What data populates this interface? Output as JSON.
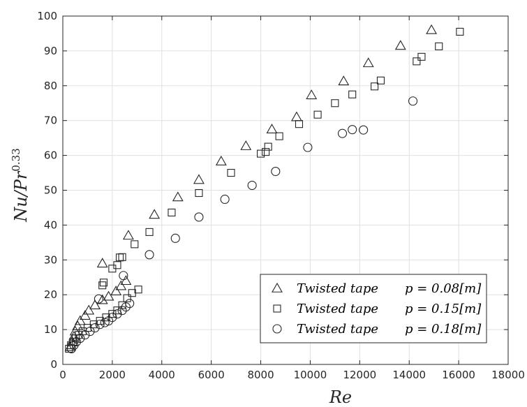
{
  "chart_data": {
    "type": "scatter",
    "xlabel": "Re",
    "ylabel_base": "Nu/Pr",
    "ylabel_exp": "0.33",
    "xlim": [
      0,
      18000
    ],
    "ylim": [
      0,
      100
    ],
    "xticks": [
      0,
      2000,
      4000,
      6000,
      8000,
      10000,
      12000,
      14000,
      16000,
      18000
    ],
    "yticks": [
      0,
      10,
      20,
      30,
      40,
      50,
      60,
      70,
      80,
      90,
      100
    ],
    "grid": true,
    "legend_position": "bottom-right",
    "series": [
      {
        "name": "Twisted tape  p = 0.08[m]",
        "marker": "triangle",
        "points": [
          [
            300,
            5.0
          ],
          [
            380,
            6.5
          ],
          [
            450,
            8.0
          ],
          [
            500,
            9.5
          ],
          [
            600,
            11.0
          ],
          [
            700,
            12.5
          ],
          [
            900,
            14.0
          ],
          [
            1050,
            15.5
          ],
          [
            1300,
            17.0
          ],
          [
            1600,
            18.5
          ],
          [
            1850,
            19.5
          ],
          [
            2150,
            21.0
          ],
          [
            2350,
            22.5
          ],
          [
            2550,
            24.0
          ],
          [
            1600,
            29.0
          ],
          [
            2650,
            37.0
          ],
          [
            3700,
            43.0
          ],
          [
            4650,
            48.0
          ],
          [
            5500,
            53.0
          ],
          [
            6400,
            58.3
          ],
          [
            7400,
            62.7
          ],
          [
            8450,
            67.5
          ],
          [
            9450,
            71.0
          ],
          [
            10050,
            77.3
          ],
          [
            11350,
            81.3
          ],
          [
            12350,
            86.5
          ],
          [
            13650,
            91.5
          ],
          [
            14900,
            96.0
          ]
        ]
      },
      {
        "name": "Twisted tape  p = 0.15[m]",
        "marker": "square",
        "points": [
          [
            250,
            4.5
          ],
          [
            330,
            5.5
          ],
          [
            420,
            6.5
          ],
          [
            520,
            7.5
          ],
          [
            650,
            8.5
          ],
          [
            800,
            9.5
          ],
          [
            1000,
            10.5
          ],
          [
            1250,
            11.5
          ],
          [
            1500,
            12.5
          ],
          [
            1750,
            13.5
          ],
          [
            2000,
            14.5
          ],
          [
            2200,
            15.5
          ],
          [
            2400,
            17.0
          ],
          [
            2600,
            19.0
          ],
          [
            2800,
            20.5
          ],
          [
            3050,
            21.5
          ],
          [
            1600,
            22.7
          ],
          [
            1650,
            23.5
          ],
          [
            2000,
            27.5
          ],
          [
            2200,
            28.5
          ],
          [
            2300,
            30.7
          ],
          [
            2400,
            30.8
          ],
          [
            2900,
            34.5
          ],
          [
            3500,
            38.0
          ],
          [
            4400,
            43.6
          ],
          [
            5500,
            49.2
          ],
          [
            6800,
            55.0
          ],
          [
            8000,
            60.5
          ],
          [
            8200,
            61.0
          ],
          [
            8300,
            62.5
          ],
          [
            8750,
            65.5
          ],
          [
            9550,
            69.0
          ],
          [
            10300,
            71.7
          ],
          [
            11000,
            75.0
          ],
          [
            11700,
            77.5
          ],
          [
            12600,
            79.8
          ],
          [
            12850,
            81.5
          ],
          [
            14300,
            87.0
          ],
          [
            14500,
            88.3
          ],
          [
            15200,
            91.3
          ],
          [
            16050,
            95.5
          ]
        ]
      },
      {
        "name": "Twisted tape  p = 0.18[m]",
        "marker": "circle",
        "points": [
          [
            350,
            4.5
          ],
          [
            450,
            5.5
          ],
          [
            550,
            6.5
          ],
          [
            700,
            7.5
          ],
          [
            900,
            8.5
          ],
          [
            1100,
            9.5
          ],
          [
            1300,
            10.5
          ],
          [
            1500,
            11.5
          ],
          [
            1700,
            12.0
          ],
          [
            1850,
            12.5
          ],
          [
            2000,
            13.5
          ],
          [
            2200,
            14.5
          ],
          [
            2400,
            15.5
          ],
          [
            2550,
            16.5
          ],
          [
            2700,
            17.5
          ],
          [
            1450,
            18.8
          ],
          [
            2450,
            25.5
          ],
          [
            3500,
            31.5
          ],
          [
            4550,
            36.2
          ],
          [
            5500,
            42.3
          ],
          [
            6550,
            47.4
          ],
          [
            7650,
            51.4
          ],
          [
            8600,
            55.4
          ],
          [
            9900,
            62.3
          ],
          [
            11300,
            66.3
          ],
          [
            11700,
            67.4
          ],
          [
            12150,
            67.3
          ],
          [
            14150,
            75.6
          ]
        ]
      }
    ],
    "legend": [
      {
        "marker": "triangle",
        "prefix": "Twisted tape",
        "eq": "p = 0.08[m]"
      },
      {
        "marker": "square",
        "prefix": "Twisted tape",
        "eq": "p = 0.15[m]"
      },
      {
        "marker": "circle",
        "prefix": "Twisted tape",
        "eq": "p = 0.18[m]"
      }
    ]
  }
}
